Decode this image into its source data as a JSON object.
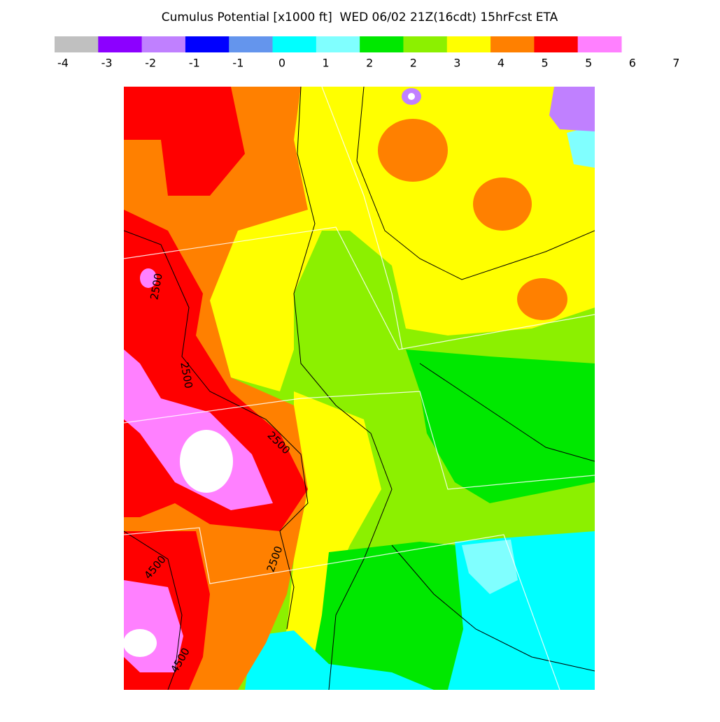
{
  "header": {
    "title": "Cumulus Potential [x1000 ft]  WED 06/02 21Z(16cdt) 15hrFcst ETA"
  },
  "colorbar": {
    "colors": [
      "#c0c0c0",
      "#8c00ff",
      "#c080ff",
      "#0000ff",
      "#6495ed",
      "#00ffff",
      "#80ffff",
      "#00e800",
      "#8cf000",
      "#ffff00",
      "#ff8000",
      "#ff0000",
      "#ff80ff"
    ],
    "labels": [
      "-4",
      "-3",
      "-2",
      "-1",
      "-1",
      "0",
      "1",
      "2",
      "2",
      "3",
      "4",
      "5",
      "5",
      "6",
      "7"
    ]
  },
  "map": {
    "contour_labels": [
      "2500",
      "2500",
      "2500",
      "2500",
      "4500",
      "4500"
    ]
  }
}
